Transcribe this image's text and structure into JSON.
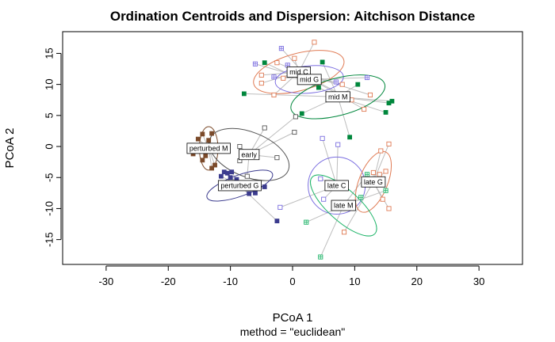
{
  "chart_data": {
    "type": "scatter",
    "title": "Ordination Centroids and Dispersion: Aitchison Distance",
    "xlabel": "PCoA 1",
    "ylabel": "PCoA 2",
    "subtitle": "method = \"euclidean\"",
    "xlim": [
      -37,
      37
    ],
    "ylim": [
      -19,
      18.5
    ],
    "xticks": [
      -30,
      -20,
      -10,
      0,
      10,
      20,
      30
    ],
    "yticks": [
      -15,
      -10,
      -5,
      0,
      5,
      10,
      15
    ],
    "grid": false,
    "groups": [
      {
        "label": "mid C",
        "color": "#e07b54",
        "marker": "square-open",
        "centroid": [
          1.0,
          12.0
        ],
        "ellipse": {
          "rx": 7.5,
          "ry": 3.0,
          "angle": -15
        },
        "points": [
          [
            3.5,
            16.8
          ],
          [
            0.3,
            14.2
          ],
          [
            -2.5,
            13.5
          ],
          [
            -1.5,
            11.0
          ],
          [
            -5.0,
            11.5
          ],
          [
            -5.0,
            10.2
          ],
          [
            -3.0,
            8.3
          ],
          [
            8.0,
            10.0
          ],
          [
            9.5,
            7.5
          ],
          [
            12.5,
            8.3
          ],
          [
            11.5,
            6.0
          ]
        ]
      },
      {
        "label": "mid G",
        "color": "#7b6ee0",
        "marker": "square-cross",
        "centroid": [
          2.7,
          10.8
        ],
        "ellipse": {
          "rx": 5.5,
          "ry": 2.2,
          "angle": -5
        },
        "points": [
          [
            -1.8,
            15.8
          ],
          [
            -6.0,
            13.3
          ],
          [
            -0.8,
            13.1
          ],
          [
            -3.0,
            11.2
          ],
          [
            7.0,
            10.4
          ],
          [
            12.0,
            11.1
          ]
        ]
      },
      {
        "label": "mid M",
        "color": "#00873c",
        "marker": "square-filled",
        "centroid": [
          7.3,
          8.0
        ],
        "ellipse": {
          "rx": 7.8,
          "ry": 3.0,
          "angle": -15
        },
        "points": [
          [
            -4.5,
            13.5
          ],
          [
            4.8,
            13.6
          ],
          [
            -7.8,
            8.5
          ],
          [
            4.2,
            9.5
          ],
          [
            10.5,
            10.0
          ],
          [
            15.5,
            7.0
          ],
          [
            16.0,
            7.3
          ],
          [
            15.0,
            5.5
          ],
          [
            1.5,
            5.3
          ],
          [
            9.2,
            1.5
          ]
        ]
      },
      {
        "label": "perturbed M",
        "color": "#7b4a2a",
        "marker": "square-filled",
        "centroid": [
          -13.5,
          -0.3
        ],
        "ellipse": {
          "rx": 1.5,
          "ry": 3.5,
          "angle": 0
        },
        "points": [
          [
            -14.5,
            2.0
          ],
          [
            -13.0,
            2.1
          ],
          [
            -15.2,
            1.2
          ],
          [
            -13.5,
            1.0
          ],
          [
            -15.0,
            -0.5
          ],
          [
            -16.0,
            -1.2
          ],
          [
            -14.0,
            -1.5
          ],
          [
            -14.5,
            -2.2
          ],
          [
            -12.5,
            -3.0
          ],
          [
            -13.0,
            -3.5
          ]
        ]
      },
      {
        "label": "early",
        "color": "#555555",
        "marker": "square-open",
        "centroid": [
          -7.0,
          -1.3
        ],
        "ellipse": {
          "rx": 6.8,
          "ry": 3.6,
          "angle": 22
        },
        "points": [
          [
            -4.5,
            3.0
          ],
          [
            0.5,
            4.8
          ],
          [
            0.3,
            2.3
          ],
          [
            -8.5,
            0.0
          ],
          [
            -2.5,
            -1.8
          ],
          [
            -8.5,
            -2.3
          ],
          [
            -7.3,
            -4.8
          ]
        ]
      },
      {
        "label": "perturbed G",
        "color": "#3b3b8e",
        "marker": "square-filled",
        "centroid": [
          -8.5,
          -6.3
        ],
        "ellipse": {
          "rx": 5.6,
          "ry": 1.7,
          "angle": -20
        },
        "points": [
          [
            -11.0,
            -4.1
          ],
          [
            -10.5,
            -4.3
          ],
          [
            -9.8,
            -4.1
          ],
          [
            -11.5,
            -4.8
          ],
          [
            -10.0,
            -5.0
          ],
          [
            -9.0,
            -5.3
          ],
          [
            -8.0,
            -5.8
          ],
          [
            -7.8,
            -6.7
          ],
          [
            -7.0,
            -7.6
          ],
          [
            -6.0,
            -7.5
          ],
          [
            -4.5,
            -6.5
          ],
          [
            -2.5,
            -12.0
          ]
        ]
      },
      {
        "label": "late C",
        "color": "#7b6ee0",
        "marker": "square-open",
        "centroid": [
          7.1,
          -6.3
        ],
        "ellipse": {
          "rx": 4.6,
          "ry": 4.6,
          "angle": 0
        },
        "points": [
          [
            4.8,
            1.3
          ],
          [
            7.3,
            0.3
          ],
          [
            -2.0,
            -9.8
          ],
          [
            4.5,
            -5.2
          ],
          [
            5.0,
            -8.5
          ]
        ]
      },
      {
        "label": "late G",
        "color": "#e07b54",
        "marker": "square-open",
        "centroid": [
          13.0,
          -5.7
        ],
        "ellipse": {
          "rx": 2.3,
          "ry": 5.2,
          "angle": 22
        },
        "points": [
          [
            15.5,
            0.4
          ],
          [
            14.2,
            -0.7
          ],
          [
            15.0,
            -4.0
          ],
          [
            14.0,
            -4.5
          ],
          [
            13.0,
            -4.2
          ],
          [
            14.5,
            -8.5
          ],
          [
            15.5,
            -10.0
          ],
          [
            8.3,
            -13.8
          ]
        ]
      },
      {
        "label": "late M",
        "color": "#20b56a",
        "marker": "square-cross",
        "centroid": [
          8.2,
          -9.5
        ],
        "ellipse": {
          "rx": 6.8,
          "ry": 2.5,
          "angle": 42
        },
        "points": [
          [
            12.0,
            -4.5
          ],
          [
            15.0,
            -7.1
          ],
          [
            11.0,
            -8.2
          ],
          [
            2.2,
            -12.2
          ],
          [
            4.5,
            -17.8
          ]
        ]
      }
    ]
  }
}
